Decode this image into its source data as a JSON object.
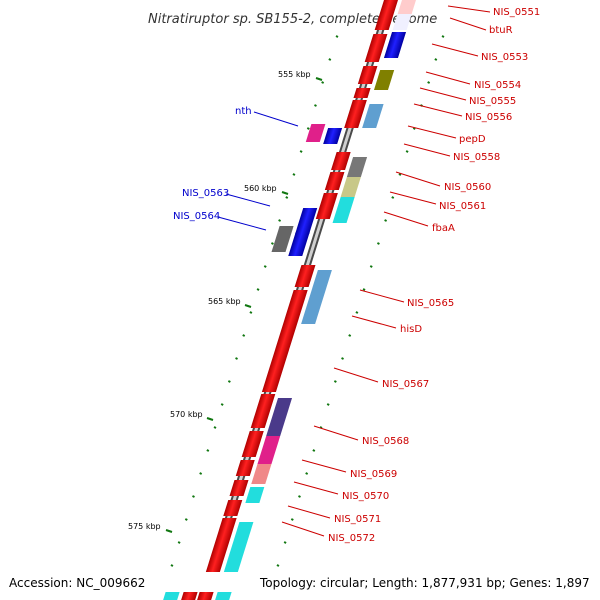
{
  "title": "Nitratiruptor sp. SB155-2, complete genome",
  "footer": {
    "accession": "Accession: NC_009662",
    "summary": "Topology: circular; Length: 1,877,931 bp; Genes: 1,897"
  },
  "kbp_ticks": [
    "555 kbp",
    "560 kbp",
    "565 kbp",
    "570 kbp",
    "575 kbp"
  ],
  "gene_labels_right": [
    "NIS_0551",
    "btuR",
    "NIS_0553",
    "NIS_0554",
    "NIS_0555",
    "NIS_0556",
    "pepD",
    "NIS_0558",
    "NIS_0560",
    "NIS_0561",
    "fbaA",
    "NIS_0565",
    "hisD",
    "NIS_0567",
    "NIS_0568",
    "NIS_0569",
    "NIS_0570",
    "NIS_0571",
    "NIS_0572"
  ],
  "gene_labels_left": [
    "nth",
    "NIS_0563",
    "NIS_0564"
  ],
  "colors": {
    "plus_strand_cds": "#ff0000",
    "minus_strand_cds": "#0000ff",
    "backbone": "#7f7f7f",
    "label_right": "#cc0000",
    "label_left": "#0000cc",
    "tick": "#117711"
  }
}
